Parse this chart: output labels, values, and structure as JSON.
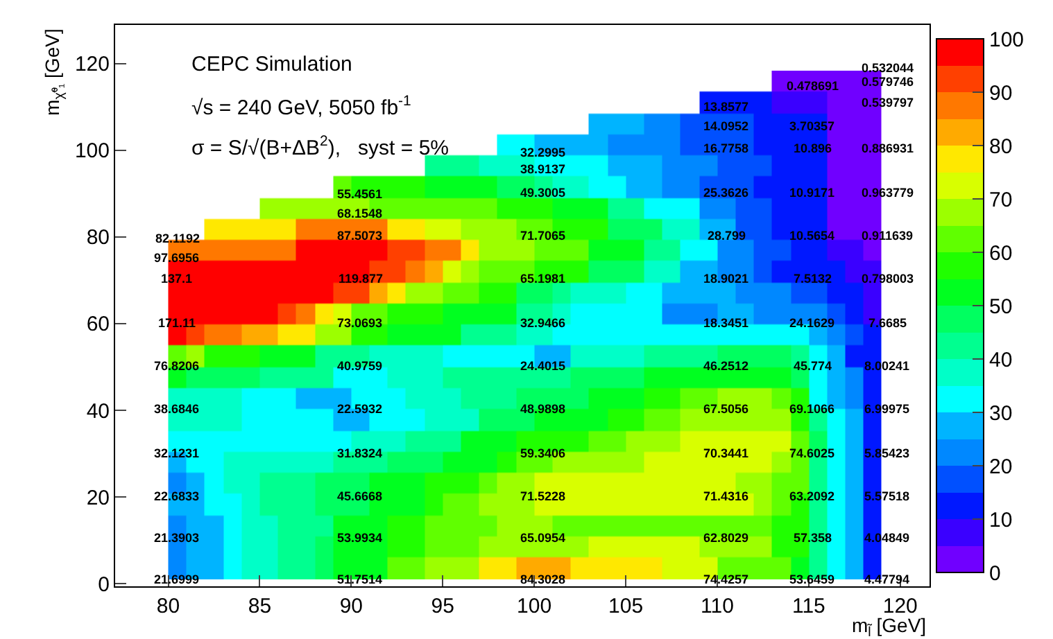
{
  "chart_data": {
    "type": "heatmap",
    "xlabel": "m$_{l̃}$ [GeV]",
    "ylabel": "m$_{χ̃⁰₁}$ [GeV]",
    "x": [
      80.5,
      81.5,
      82.5,
      83.5,
      84.5,
      85.5,
      86.5,
      87.5,
      88.5,
      89.5,
      90.5,
      91.5,
      92.5,
      93.5,
      94.5,
      95.5,
      96.5,
      97.5,
      98.5,
      99.5,
      100.5,
      101.5,
      102.5,
      103.5,
      104.5,
      105.5,
      106.5,
      107.5,
      108.5,
      109.5,
      110.5,
      111.5,
      112.5,
      113.5,
      114.5,
      115.5,
      116.5,
      117.5,
      118.5
    ],
    "y": [
      115.9,
      111.0,
      106.2,
      101.3,
      96.4,
      91.5,
      86.6,
      81.8,
      76.9,
      72.0,
      67.1,
      62.2,
      57.4,
      52.5,
      47.6,
      42.7,
      37.8,
      32.9,
      28.1,
      23.2,
      18.3,
      13.4,
      8.5,
      3.6
    ],
    "cells": [
      [
        null,
        null,
        null,
        null,
        null,
        null,
        null,
        null,
        null,
        null,
        null,
        null,
        null,
        null,
        null,
        null,
        null,
        null,
        null,
        null,
        null,
        null,
        null,
        null,
        null,
        null,
        null,
        null,
        null,
        null,
        null,
        null,
        null,
        3,
        3,
        3,
        3,
        3,
        3
      ],
      [
        null,
        null,
        null,
        null,
        null,
        null,
        null,
        null,
        null,
        null,
        null,
        null,
        null,
        null,
        null,
        null,
        null,
        null,
        null,
        null,
        null,
        null,
        null,
        null,
        null,
        null,
        null,
        null,
        null,
        12,
        12,
        12,
        12,
        7,
        7,
        7,
        3,
        3,
        3
      ],
      [
        null,
        null,
        null,
        null,
        null,
        null,
        null,
        null,
        null,
        null,
        null,
        null,
        null,
        null,
        null,
        null,
        null,
        null,
        null,
        null,
        null,
        null,
        null,
        27,
        27,
        27,
        22,
        22,
        15,
        15,
        15,
        15,
        10,
        10,
        10,
        10,
        3,
        3,
        3
      ],
      [
        null,
        null,
        null,
        null,
        null,
        null,
        null,
        null,
        null,
        null,
        null,
        null,
        null,
        null,
        null,
        null,
        null,
        null,
        32,
        32,
        27,
        27,
        27,
        27,
        22,
        22,
        22,
        22,
        17,
        17,
        17,
        17,
        12,
        12,
        12,
        12,
        3,
        3,
        3
      ],
      [
        null,
        null,
        null,
        null,
        null,
        null,
        null,
        null,
        null,
        null,
        null,
        null,
        null,
        null,
        42,
        42,
        42,
        37,
        37,
        37,
        32,
        32,
        32,
        32,
        25,
        25,
        25,
        20,
        20,
        20,
        15,
        15,
        15,
        12,
        12,
        12,
        3,
        3,
        3
      ],
      [
        null,
        null,
        null,
        null,
        null,
        null,
        null,
        null,
        null,
        62,
        57,
        57,
        57,
        57,
        52,
        52,
        52,
        52,
        47,
        47,
        42,
        37,
        37,
        32,
        32,
        27,
        27,
        22,
        22,
        17,
        17,
        17,
        12,
        12,
        12,
        12,
        3,
        3,
        3
      ],
      [
        null,
        null,
        null,
        null,
        null,
        67,
        67,
        67,
        67,
        67,
        67,
        62,
        62,
        62,
        62,
        62,
        62,
        62,
        57,
        57,
        57,
        52,
        52,
        52,
        42,
        42,
        32,
        32,
        32,
        22,
        22,
        17,
        17,
        12,
        12,
        12,
        3,
        3,
        3
      ],
      [
        null,
        null,
        77,
        77,
        77,
        77,
        77,
        87,
        87,
        87,
        87,
        87,
        77,
        77,
        72,
        72,
        67,
        67,
        67,
        62,
        62,
        57,
        57,
        57,
        47,
        47,
        47,
        37,
        37,
        27,
        27,
        17,
        17,
        12,
        12,
        12,
        3,
        3,
        3
      ],
      [
        87,
        87,
        87,
        87,
        87,
        87,
        87,
        97,
        97,
        97,
        97,
        97,
        92,
        92,
        87,
        87,
        77,
        67,
        67,
        67,
        62,
        62,
        62,
        52,
        52,
        52,
        42,
        42,
        32,
        32,
        22,
        22,
        17,
        17,
        12,
        12,
        7,
        7,
        3
      ],
      [
        97,
        97,
        97,
        97,
        97,
        97,
        97,
        97,
        97,
        97,
        97,
        92,
        92,
        87,
        82,
        72,
        67,
        62,
        62,
        62,
        57,
        57,
        57,
        47,
        47,
        47,
        37,
        37,
        27,
        27,
        22,
        22,
        17,
        12,
        12,
        10,
        10,
        7,
        7
      ],
      [
        97,
        97,
        97,
        97,
        97,
        97,
        97,
        97,
        97,
        92,
        92,
        82,
        77,
        67,
        67,
        62,
        62,
        57,
        57,
        47,
        47,
        42,
        37,
        37,
        37,
        32,
        32,
        27,
        27,
        27,
        27,
        22,
        22,
        22,
        17,
        17,
        12,
        10,
        7
      ],
      [
        97,
        97,
        97,
        97,
        97,
        97,
        92,
        87,
        77,
        72,
        62,
        62,
        57,
        57,
        57,
        52,
        52,
        52,
        52,
        42,
        42,
        37,
        32,
        32,
        32,
        32,
        32,
        22,
        22,
        22,
        27,
        27,
        22,
        22,
        20,
        20,
        15,
        12,
        7
      ],
      [
        97,
        92,
        87,
        87,
        82,
        82,
        77,
        77,
        67,
        67,
        57,
        57,
        52,
        52,
        52,
        52,
        42,
        42,
        42,
        37,
        37,
        32,
        32,
        32,
        32,
        32,
        32,
        32,
        32,
        32,
        32,
        32,
        32,
        32,
        32,
        27,
        20,
        15,
        10
      ],
      [
        62,
        67,
        57,
        57,
        57,
        52,
        52,
        52,
        42,
        42,
        42,
        37,
        37,
        37,
        37,
        32,
        32,
        32,
        32,
        32,
        27,
        27,
        37,
        37,
        37,
        37,
        42,
        42,
        42,
        42,
        47,
        47,
        47,
        47,
        42,
        32,
        25,
        12,
        10
      ],
      [
        52,
        47,
        47,
        47,
        47,
        42,
        42,
        42,
        42,
        32,
        32,
        32,
        37,
        37,
        37,
        42,
        42,
        42,
        42,
        42,
        42,
        42,
        47,
        47,
        47,
        47,
        52,
        52,
        52,
        52,
        52,
        52,
        52,
        52,
        47,
        32,
        27,
        20,
        12
      ],
      [
        37,
        37,
        37,
        37,
        32,
        32,
        32,
        25,
        25,
        25,
        32,
        32,
        32,
        37,
        37,
        37,
        42,
        42,
        42,
        47,
        47,
        47,
        47,
        52,
        52,
        52,
        57,
        57,
        62,
        62,
        67,
        67,
        67,
        62,
        57,
        32,
        25,
        20,
        12
      ],
      [
        37,
        37,
        37,
        37,
        32,
        32,
        32,
        32,
        32,
        27,
        27,
        32,
        32,
        32,
        37,
        37,
        37,
        47,
        47,
        47,
        52,
        52,
        52,
        52,
        57,
        57,
        62,
        62,
        67,
        67,
        67,
        67,
        67,
        67,
        57,
        42,
        32,
        25,
        12
      ],
      [
        32,
        32,
        32,
        32,
        32,
        32,
        32,
        32,
        32,
        32,
        37,
        37,
        37,
        42,
        42,
        42,
        52,
        52,
        52,
        57,
        57,
        57,
        57,
        62,
        62,
        67,
        67,
        67,
        72,
        72,
        72,
        72,
        72,
        72,
        62,
        47,
        32,
        25,
        12
      ],
      [
        27,
        32,
        32,
        37,
        37,
        37,
        37,
        37,
        37,
        42,
        42,
        42,
        47,
        47,
        47,
        52,
        52,
        52,
        57,
        62,
        62,
        67,
        67,
        67,
        67,
        67,
        72,
        72,
        72,
        72,
        72,
        72,
        72,
        67,
        62,
        42,
        32,
        25,
        12
      ],
      [
        22,
        27,
        32,
        37,
        37,
        42,
        42,
        42,
        47,
        47,
        47,
        52,
        52,
        52,
        57,
        57,
        57,
        62,
        67,
        67,
        72,
        72,
        72,
        72,
        72,
        72,
        72,
        72,
        72,
        72,
        72,
        67,
        67,
        62,
        62,
        42,
        32,
        25,
        12
      ],
      [
        27,
        27,
        32,
        32,
        37,
        42,
        42,
        42,
        47,
        47,
        47,
        52,
        52,
        52,
        57,
        62,
        62,
        67,
        67,
        67,
        72,
        72,
        72,
        72,
        72,
        72,
        72,
        72,
        72,
        72,
        72,
        72,
        67,
        62,
        57,
        42,
        32,
        25,
        12
      ],
      [
        22,
        27,
        27,
        32,
        37,
        37,
        42,
        42,
        42,
        52,
        52,
        52,
        57,
        57,
        62,
        62,
        62,
        62,
        67,
        67,
        67,
        62,
        62,
        62,
        62,
        62,
        62,
        62,
        62,
        62,
        62,
        62,
        62,
        57,
        57,
        42,
        32,
        25,
        12
      ],
      [
        22,
        27,
        27,
        32,
        37,
        37,
        42,
        42,
        47,
        52,
        52,
        52,
        57,
        57,
        62,
        62,
        62,
        67,
        67,
        67,
        67,
        67,
        67,
        72,
        72,
        72,
        72,
        72,
        72,
        67,
        67,
        67,
        67,
        57,
        57,
        42,
        32,
        25,
        12
      ],
      [
        20,
        27,
        27,
        32,
        37,
        37,
        42,
        42,
        47,
        52,
        52,
        52,
        62,
        62,
        67,
        67,
        67,
        77,
        77,
        82,
        82,
        82,
        77,
        77,
        77,
        77,
        77,
        72,
        72,
        72,
        62,
        62,
        62,
        62,
        55,
        40,
        32,
        25,
        12
      ]
    ],
    "clim": [
      0,
      100
    ],
    "cticks": [
      0,
      10,
      20,
      30,
      40,
      50,
      60,
      70,
      80,
      90,
      100
    ],
    "xlim": [
      77.1,
      121.6
    ],
    "ylim": [
      -0.6,
      128.9
    ],
    "xticks": [
      80,
      85,
      90,
      95,
      100,
      105,
      110,
      115,
      120
    ],
    "yticks": [
      0,
      20,
      40,
      60,
      80,
      100,
      120
    ],
    "annotations": [
      "CEPC Simulation",
      "√s = 240 GeV, 5050 fb$^{-1}$",
      "σ = S/√(B+ΔB$^{2}$),   syst = 5%",
      "21.6999",
      "21.3903",
      "22.6833",
      "32.1231",
      "38.6846",
      "76.8206",
      "171.11",
      "137.1",
      "97.6956",
      "82.1192",
      "51.7514",
      "53.9934",
      "45.6668",
      "31.8324",
      "22.5932",
      "40.9759",
      "73.0693",
      "119.877",
      "87.5073",
      "68.1548",
      "55.4561",
      "84.3028",
      "65.0954",
      "71.5228",
      "59.3406",
      "48.9898",
      "24.4015",
      "32.9466",
      "65.1981",
      "71.7065",
      "49.3005",
      "38.9137",
      "32.2995",
      "74.4257",
      "62.8029",
      "71.4316",
      "70.3441",
      "67.5056",
      "46.2512",
      "18.3451",
      "18.9021",
      "28.799",
      "25.3626",
      "16.7758",
      "14.0952",
      "13.8577",
      "53.6459",
      "57.358",
      "63.2092",
      "74.6025",
      "69.1066",
      "45.774",
      "24.1629",
      "7.5132",
      "10.5654",
      "10.9171",
      "10.896",
      "3.70357",
      "0.478691",
      "4.47794",
      "4.04849",
      "5.57518",
      "5.85423",
      "6.99975",
      "8.00241",
      "7.6685",
      "0.798003",
      "0.911639",
      "0.963779",
      "0.886931",
      "0.539797",
      "0.579746",
      "0.532044"
    ]
  }
}
